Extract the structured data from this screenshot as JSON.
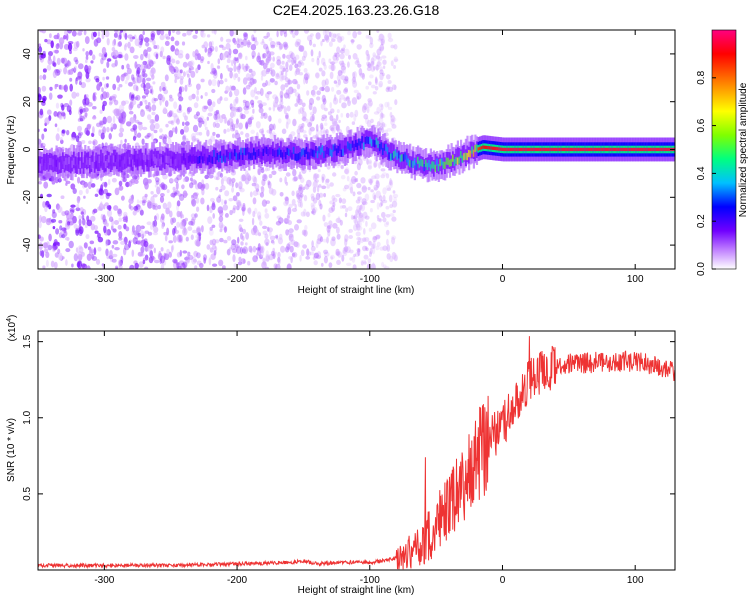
{
  "title": "C2E4.2025.163.23.26.G18",
  "chart_data": [
    {
      "type": "heatmap",
      "xlabel": "Height of straight line (km)",
      "ylabel": "Frequency (Hz)",
      "xlim": [
        -350,
        130
      ],
      "ylim": [
        -50,
        50
      ],
      "x_ticks": [
        -300,
        -200,
        -100,
        0,
        100
      ],
      "y_ticks": [
        -40,
        -20,
        0,
        20,
        40
      ],
      "x_tick_labels": [
        "-300",
        "-200",
        "-100",
        "0",
        "100"
      ],
      "y_tick_labels": [
        "-40",
        "-20",
        "0",
        "20",
        "40"
      ],
      "colorbar": {
        "label": "Normalized spectral amplitude",
        "range": [
          0,
          1
        ],
        "ticks": [
          0.0,
          0.2,
          0.4,
          0.6,
          0.8
        ],
        "tick_labels": [
          "0.0",
          "0.2",
          "0.4",
          "0.6",
          "0.8"
        ],
        "colors": [
          "#ffffff",
          "#c080ff",
          "#7000ff",
          "#0000ff",
          "#00c0ff",
          "#00ff80",
          "#80ff00",
          "#ffff00",
          "#ff8000",
          "#ff0000",
          "#ff0080"
        ]
      },
      "noise_region_x": [
        -350,
        -80
      ],
      "ridge": [
        {
          "x": -350,
          "f": -6,
          "amp": 0.18
        },
        {
          "x": -300,
          "f": -5,
          "amp": 0.18
        },
        {
          "x": -250,
          "f": -4,
          "amp": 0.2
        },
        {
          "x": -210,
          "f": -3,
          "amp": 0.35
        },
        {
          "x": -180,
          "f": -1,
          "amp": 0.3
        },
        {
          "x": -150,
          "f": -2,
          "amp": 0.35
        },
        {
          "x": -120,
          "f": 0,
          "amp": 0.35
        },
        {
          "x": -100,
          "f": 4,
          "amp": 0.4
        },
        {
          "x": -85,
          "f": -2,
          "amp": 0.45
        },
        {
          "x": -70,
          "f": -5,
          "amp": 0.5
        },
        {
          "x": -55,
          "f": -7,
          "amp": 0.5
        },
        {
          "x": -40,
          "f": -5,
          "amp": 0.6
        },
        {
          "x": -25,
          "f": -1,
          "amp": 0.8
        },
        {
          "x": -15,
          "f": 1,
          "amp": 0.9
        },
        {
          "x": 0,
          "f": 0,
          "amp": 0.95
        },
        {
          "x": 50,
          "f": 0,
          "amp": 0.95
        },
        {
          "x": 100,
          "f": 0,
          "amp": 0.95
        },
        {
          "x": 130,
          "f": 0,
          "amp": 0.95
        }
      ]
    },
    {
      "type": "line",
      "xlabel": "Height of straight line (km)",
      "ylabel": "SNR (10 * v/v)",
      "multiplier_label": "(x10",
      "multiplier_exponent": "4",
      "multiplier_close": ")",
      "xlim": [
        -350,
        130
      ],
      "ylim": [
        0,
        1.57
      ],
      "x_ticks": [
        -300,
        -200,
        -100,
        0,
        100
      ],
      "y_ticks": [
        0.5,
        1.0,
        1.5
      ],
      "x_tick_labels": [
        "-300",
        "-200",
        "-100",
        "0",
        "100"
      ],
      "y_tick_labels": [
        "0.5",
        "1.0",
        "1.5"
      ],
      "color": "#ee3333",
      "series": [
        {
          "x": [
            -350,
            -300,
            -250,
            -200,
            -160,
            -150,
            -140,
            -120,
            -100,
            -90,
            -80,
            -70,
            -60,
            -50,
            -45,
            -40,
            -35,
            -30,
            -25,
            -20,
            -15,
            -10,
            -5,
            0,
            5,
            10,
            15,
            20,
            30,
            40,
            50,
            60,
            80,
            100,
            120,
            130
          ],
          "y": [
            0.03,
            0.03,
            0.03,
            0.04,
            0.05,
            0.06,
            0.04,
            0.05,
            0.05,
            0.06,
            0.08,
            0.12,
            0.18,
            0.28,
            0.35,
            0.45,
            0.5,
            0.55,
            0.65,
            0.72,
            0.78,
            0.85,
            0.9,
            0.95,
            1.02,
            1.1,
            1.18,
            1.25,
            1.3,
            1.33,
            1.35,
            1.36,
            1.37,
            1.37,
            1.33,
            1.3
          ]
        }
      ]
    }
  ]
}
